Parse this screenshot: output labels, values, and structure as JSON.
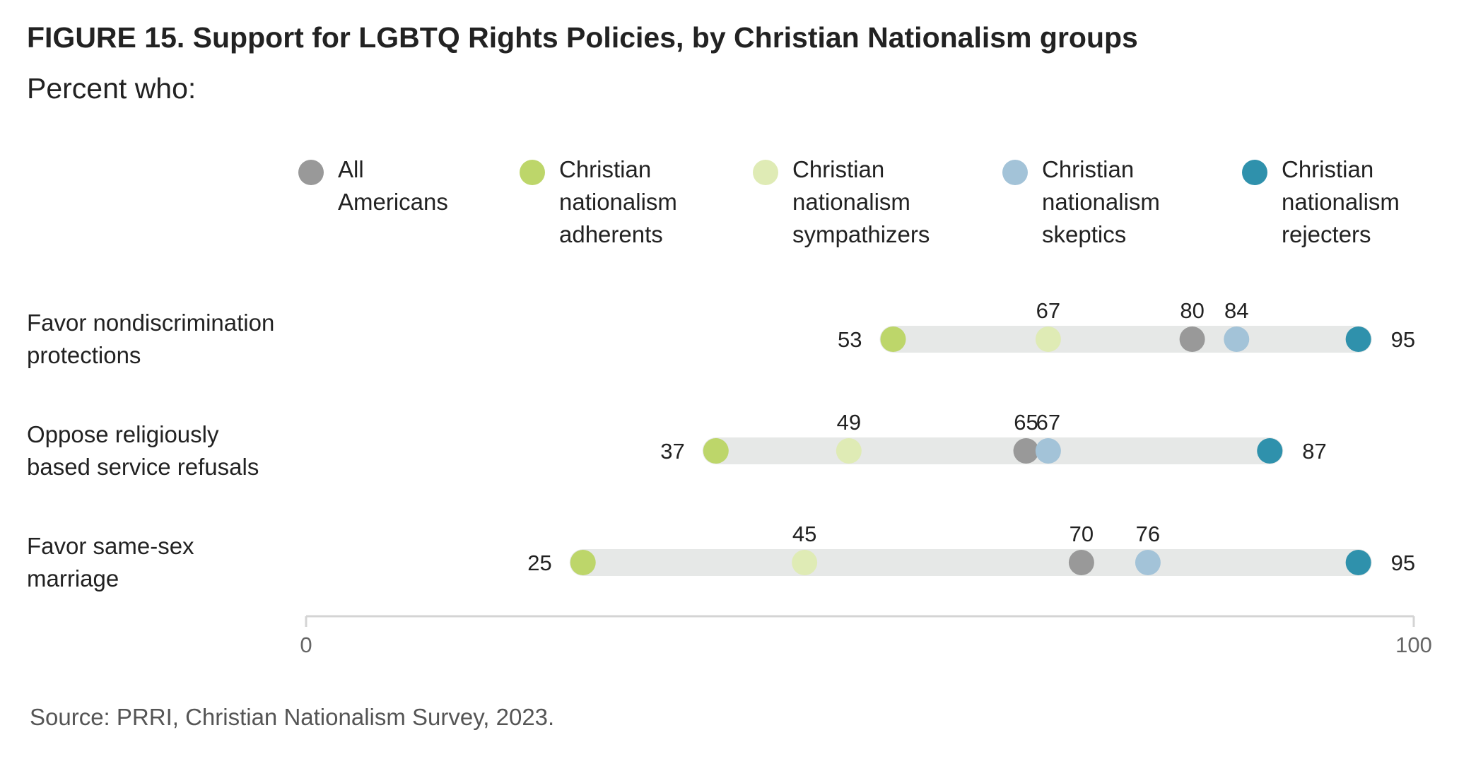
{
  "title": "FIGURE 15.  Support for LGBTQ Rights Policies, by Christian Nationalism groups",
  "subtitle": "Percent who:",
  "source": "Source: PRRI, Christian Nationalism Survey, 2023.",
  "chart_data": {
    "type": "scatter",
    "subtype": "dot-range",
    "xlim": [
      0,
      100
    ],
    "ticks": [
      0,
      100
    ],
    "tick_labels": [
      "0",
      "100"
    ],
    "grid": false,
    "legend_position": "top",
    "series": [
      {
        "key": "all",
        "name_lines": [
          "All",
          "Americans"
        ],
        "color": "#999999"
      },
      {
        "key": "adherents",
        "name_lines": [
          "Christian",
          "nationalism",
          "adherents"
        ],
        "color": "#bdd66a"
      },
      {
        "key": "sympathizers",
        "name_lines": [
          "Christian",
          "nationalism",
          "sympathizers"
        ],
        "color": "#dfebb5"
      },
      {
        "key": "skeptics",
        "name_lines": [
          "Christian",
          "nationalism",
          "skeptics"
        ],
        "color": "#a3c3d8"
      },
      {
        "key": "rejecters",
        "name_lines": [
          "Christian",
          "nationalism",
          "rejecters"
        ],
        "color": "#2f91ac"
      }
    ],
    "rows": [
      {
        "label_lines": [
          "Favor nondiscrimination",
          "protections"
        ],
        "values": {
          "all": 80,
          "adherents": 53,
          "sympathizers": 67,
          "skeptics": 84,
          "rejecters": 95
        }
      },
      {
        "label_lines": [
          "Oppose religiously",
          "based service refusals"
        ],
        "values": {
          "all": 65,
          "adherents": 37,
          "sympathizers": 49,
          "skeptics": 67,
          "rejecters": 87
        }
      },
      {
        "label_lines": [
          "Favor same-sex",
          "marriage"
        ],
        "values": {
          "all": 70,
          "adherents": 25,
          "sympathizers": 45,
          "skeptics": 76,
          "rejecters": 95
        }
      }
    ]
  }
}
